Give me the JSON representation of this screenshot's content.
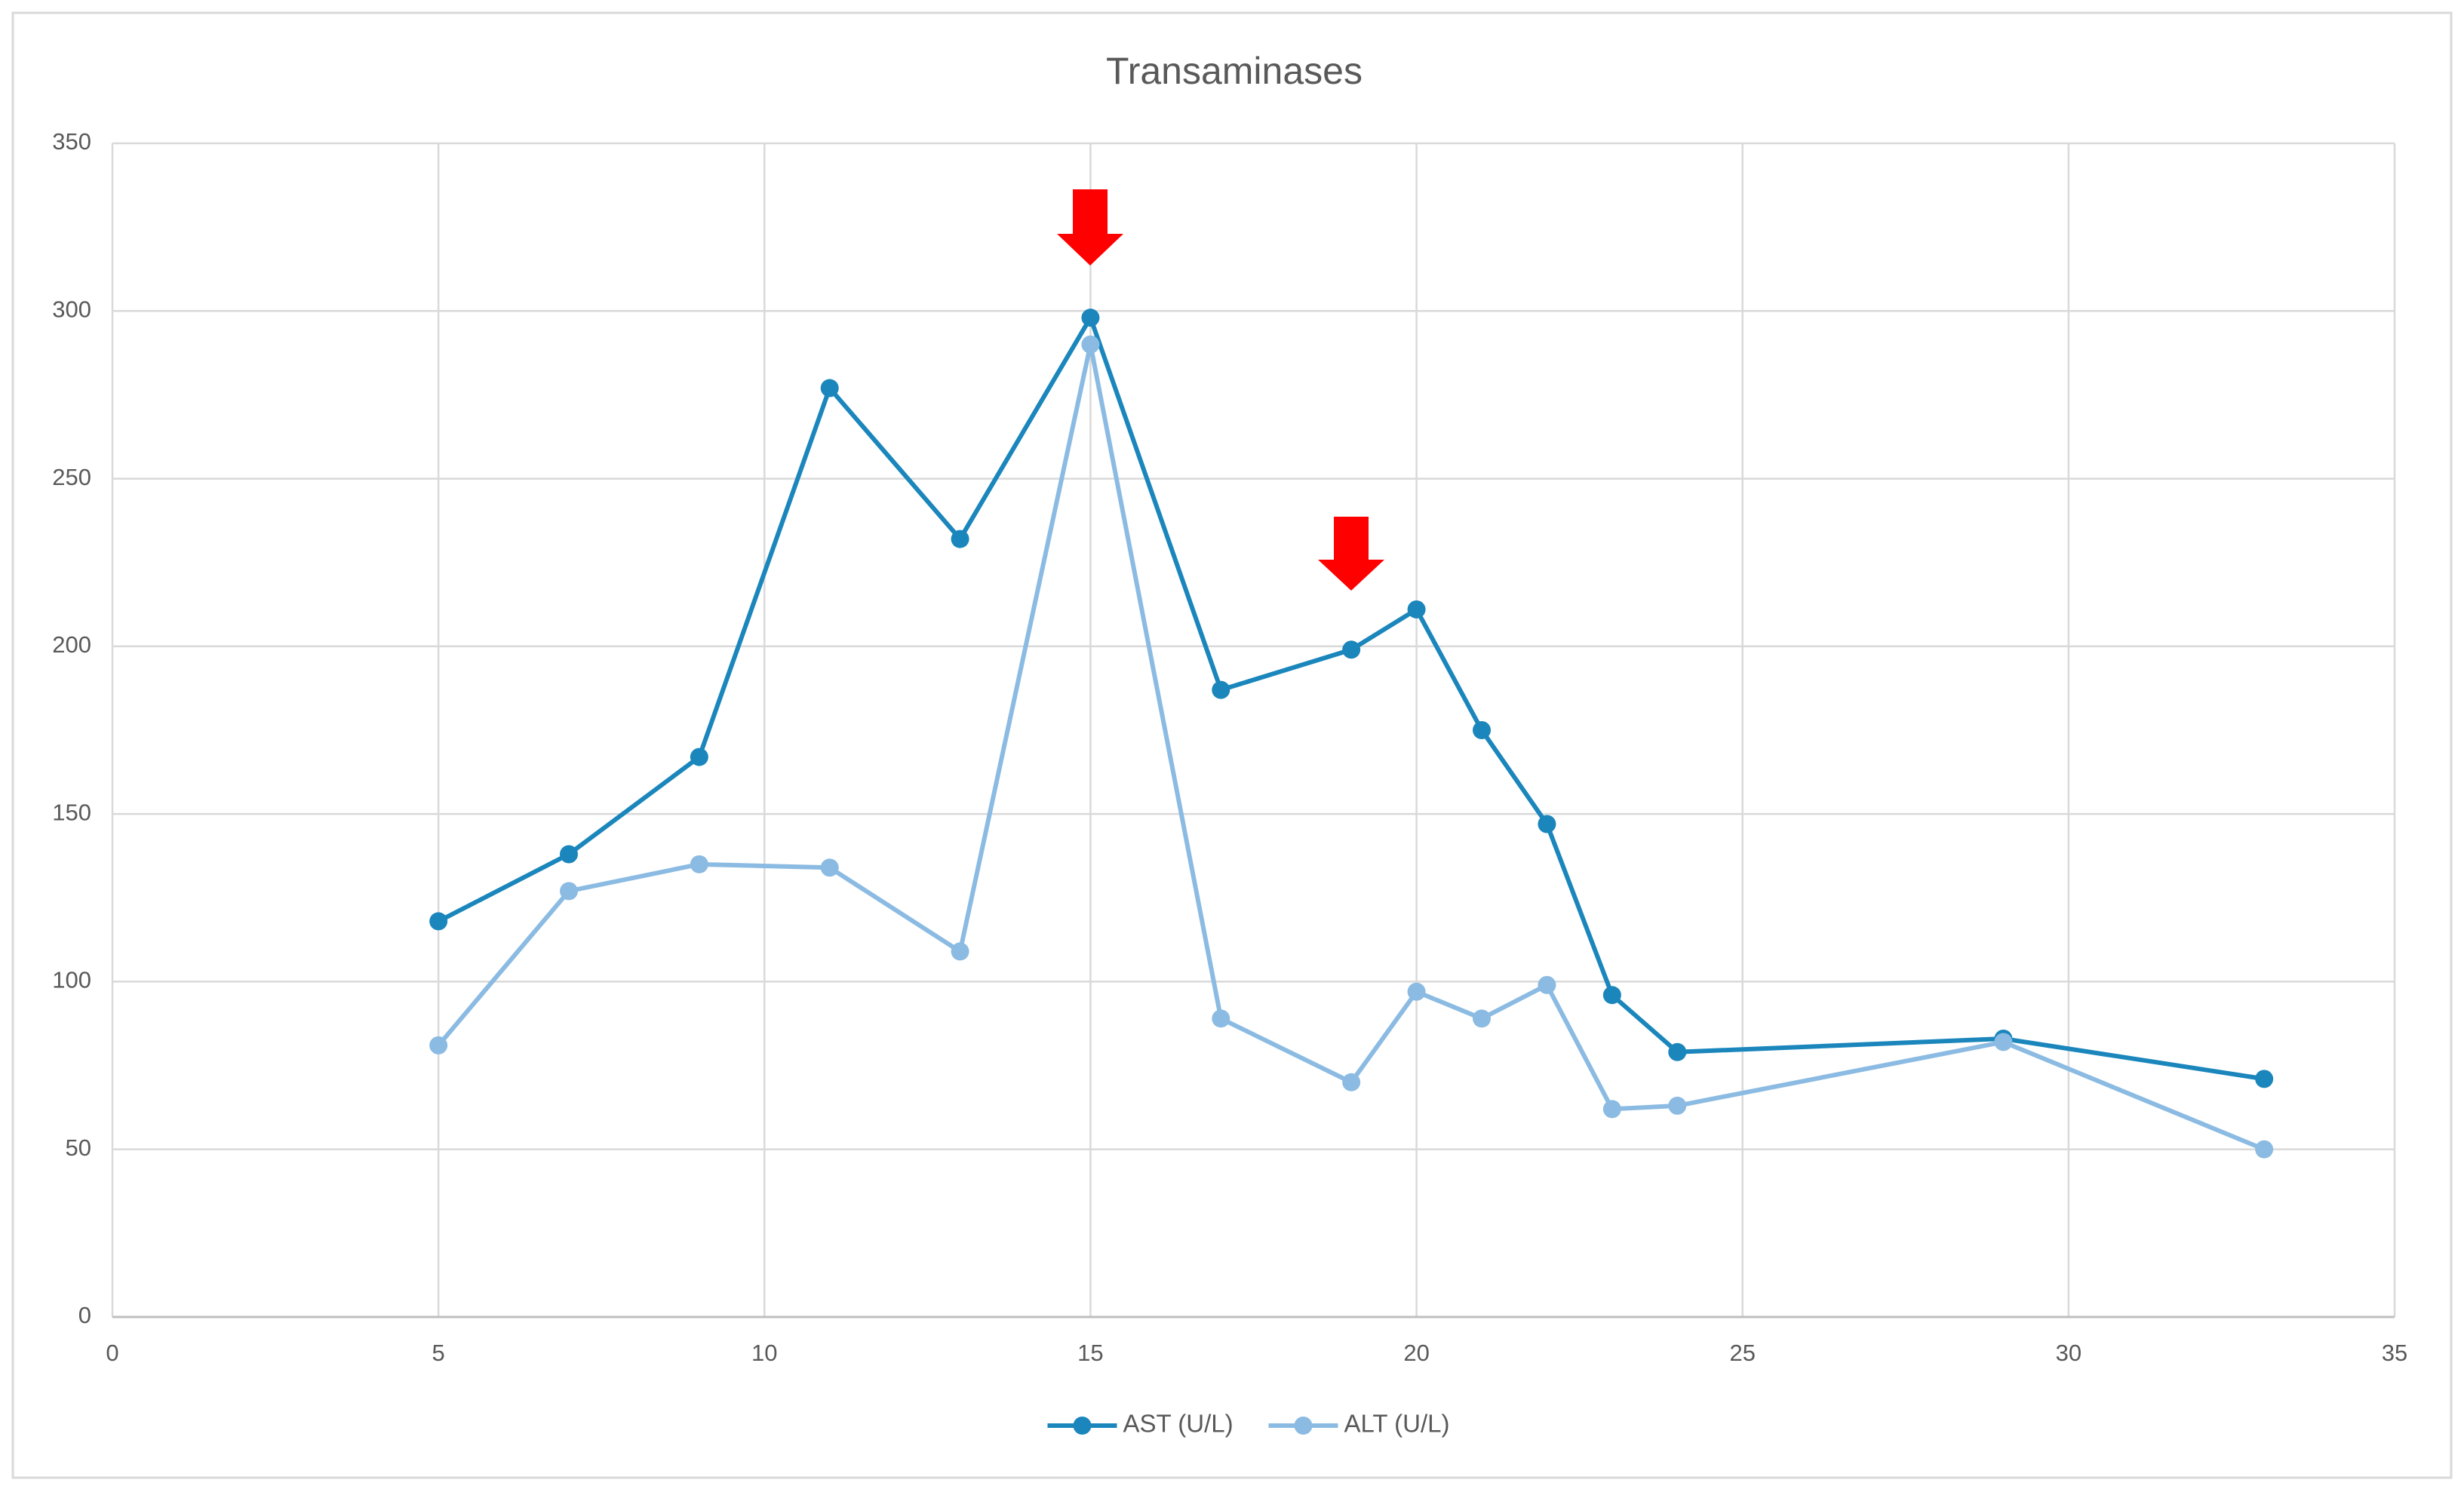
{
  "chart_data": {
    "type": "line",
    "title": "Transaminases",
    "x": [
      5,
      7,
      9,
      11,
      13,
      15,
      17,
      19,
      20,
      21,
      22,
      23,
      24,
      29,
      33
    ],
    "series": [
      {
        "name": "AST (U/L)",
        "color": "#1a86bc",
        "values": [
          118,
          138,
          167,
          277,
          232,
          298,
          187,
          199,
          211,
          175,
          147,
          96,
          79,
          83,
          71
        ]
      },
      {
        "name": "ALT (U/L)",
        "color": "#8bbbe2",
        "values": [
          81,
          127,
          135,
          134,
          109,
          290,
          89,
          70,
          97,
          89,
          99,
          62,
          63,
          82,
          50
        ]
      }
    ],
    "xlim": [
      0,
      35
    ],
    "xticks": [
      0,
      5,
      10,
      15,
      20,
      25,
      30,
      35
    ],
    "ylim": [
      0,
      350
    ],
    "yticks": [
      0,
      50,
      100,
      150,
      200,
      250,
      300,
      350
    ],
    "grid": true,
    "legend": "bottom"
  }
}
